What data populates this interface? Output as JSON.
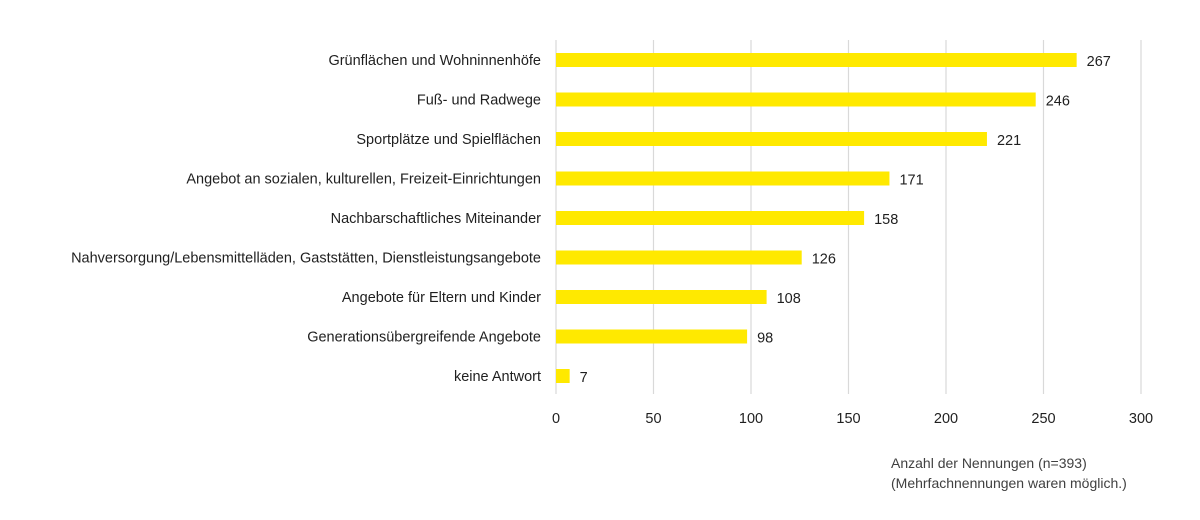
{
  "chart_data": {
    "type": "bar",
    "orientation": "horizontal",
    "categories": [
      "Grünflächen und Wohninnenhöfe",
      "Fuß- und Radwege",
      "Sportplätze und Spielflächen",
      "Angebot an sozialen, kulturellen, Freizeit-Einrichtungen",
      "Nachbarschaftliches Miteinander",
      "Nahversorgung/Lebensmittelläden, Gaststätten, Dienstleistungsangebote",
      "Angebote für Eltern und Kinder",
      "Generationsübergreifende Angebote",
      "keine Antwort"
    ],
    "values": [
      267,
      246,
      221,
      171,
      158,
      126,
      108,
      98,
      7
    ],
    "xlim": [
      0,
      300
    ],
    "xticks": [
      "0",
      "50",
      "100",
      "150",
      "200",
      "250",
      "300"
    ],
    "grid": true,
    "bar_color": "#FFE900",
    "grid_color": "#D9D9D9",
    "title": "",
    "xlabel": "Anzahl der Nennungen (n=393)",
    "note": "(Mehrfachnennungen waren möglich.)"
  }
}
